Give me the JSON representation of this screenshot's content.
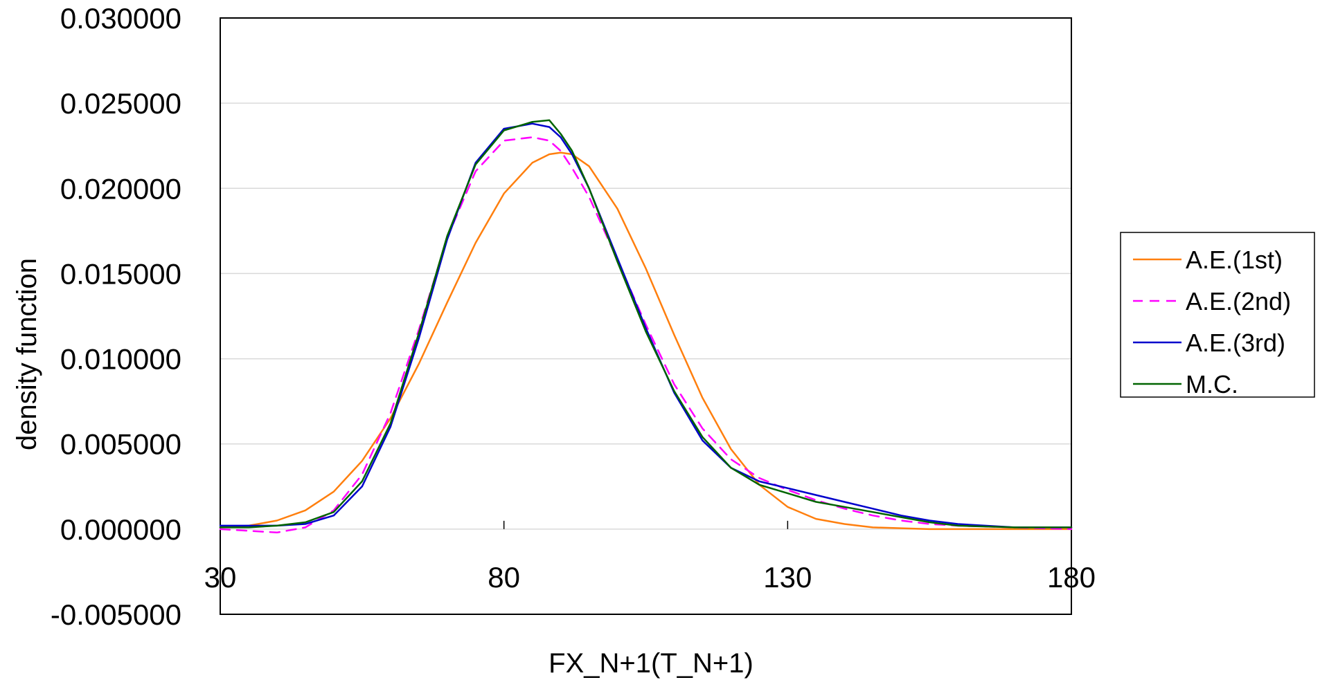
{
  "chart_data": {
    "type": "line",
    "title": "",
    "xlabel": "FX_N+1(T_N+1)",
    "ylabel": "density function",
    "xlim": [
      30,
      180
    ],
    "ylim": [
      -0.005,
      0.03
    ],
    "x_ticks": [
      "30",
      "80",
      "130",
      "180"
    ],
    "x_tick_values": [
      30,
      80,
      130,
      180
    ],
    "y_ticks": [
      "0.030000",
      "0.025000",
      "0.020000",
      "0.015000",
      "0.010000",
      "0.005000",
      "0.000000",
      "-0.005000"
    ],
    "y_tick_values": [
      0.03,
      0.025,
      0.02,
      0.015,
      0.01,
      0.005,
      0.0,
      -0.005
    ],
    "y_tick_colors": [
      "#000000",
      "#000000",
      "#000000",
      "#000000",
      "#000000",
      "#000000",
      "#000000",
      "#ff0000"
    ],
    "grid": "horizontal",
    "legend_position": "right",
    "x": [
      30,
      35,
      40,
      45,
      50,
      55,
      60,
      65,
      70,
      75,
      80,
      85,
      88,
      90,
      92,
      95,
      100,
      105,
      110,
      115,
      120,
      125,
      130,
      135,
      140,
      145,
      150,
      155,
      160,
      170,
      180
    ],
    "series": [
      {
        "name": "A.E.(1st)",
        "color": "#ff7f0e",
        "dash": "",
        "values": [
          0.0001,
          0.0002,
          0.0005,
          0.0011,
          0.0022,
          0.004,
          0.0065,
          0.0097,
          0.0133,
          0.0168,
          0.0197,
          0.0215,
          0.022,
          0.0221,
          0.022,
          0.0213,
          0.0188,
          0.0153,
          0.0114,
          0.0077,
          0.0047,
          0.0026,
          0.0013,
          0.0006,
          0.0003,
          0.0001,
          5e-05,
          0.0,
          0.0,
          0.0,
          0.0
        ]
      },
      {
        "name": "A.E.(2nd)",
        "color": "#ff00ff",
        "dash": "14,10",
        "values": [
          0.0,
          -0.0001,
          -0.0002,
          0.0001,
          0.0011,
          0.0032,
          0.0068,
          0.0117,
          0.0171,
          0.021,
          0.0228,
          0.023,
          0.0228,
          0.0222,
          0.0212,
          0.0195,
          0.0158,
          0.012,
          0.0085,
          0.0059,
          0.0041,
          0.003,
          0.0023,
          0.0017,
          0.0012,
          0.0008,
          0.0005,
          0.0003,
          0.0002,
          0.0001,
          0.0
        ]
      },
      {
        "name": "A.E.(3rd)",
        "color": "#0000cc",
        "dash": "",
        "values": [
          0.0002,
          0.0002,
          0.0002,
          0.0003,
          0.0008,
          0.0025,
          0.006,
          0.0112,
          0.017,
          0.0215,
          0.0235,
          0.0238,
          0.0236,
          0.023,
          0.022,
          0.02,
          0.0159,
          0.0118,
          0.008,
          0.0052,
          0.0036,
          0.0028,
          0.0024,
          0.002,
          0.0016,
          0.0012,
          0.0008,
          0.0005,
          0.0003,
          0.0001,
          0.0001
        ]
      },
      {
        "name": "M.C.",
        "color": "#006400",
        "dash": "",
        "values": [
          0.0001,
          0.0001,
          0.0002,
          0.0004,
          0.001,
          0.0028,
          0.0062,
          0.0115,
          0.0172,
          0.0214,
          0.0234,
          0.0239,
          0.024,
          0.0232,
          0.0222,
          0.02,
          0.0157,
          0.0116,
          0.0081,
          0.0054,
          0.0036,
          0.0026,
          0.0021,
          0.0016,
          0.0013,
          0.001,
          0.0007,
          0.0004,
          0.0002,
          0.0001,
          0.0001
        ]
      }
    ]
  }
}
